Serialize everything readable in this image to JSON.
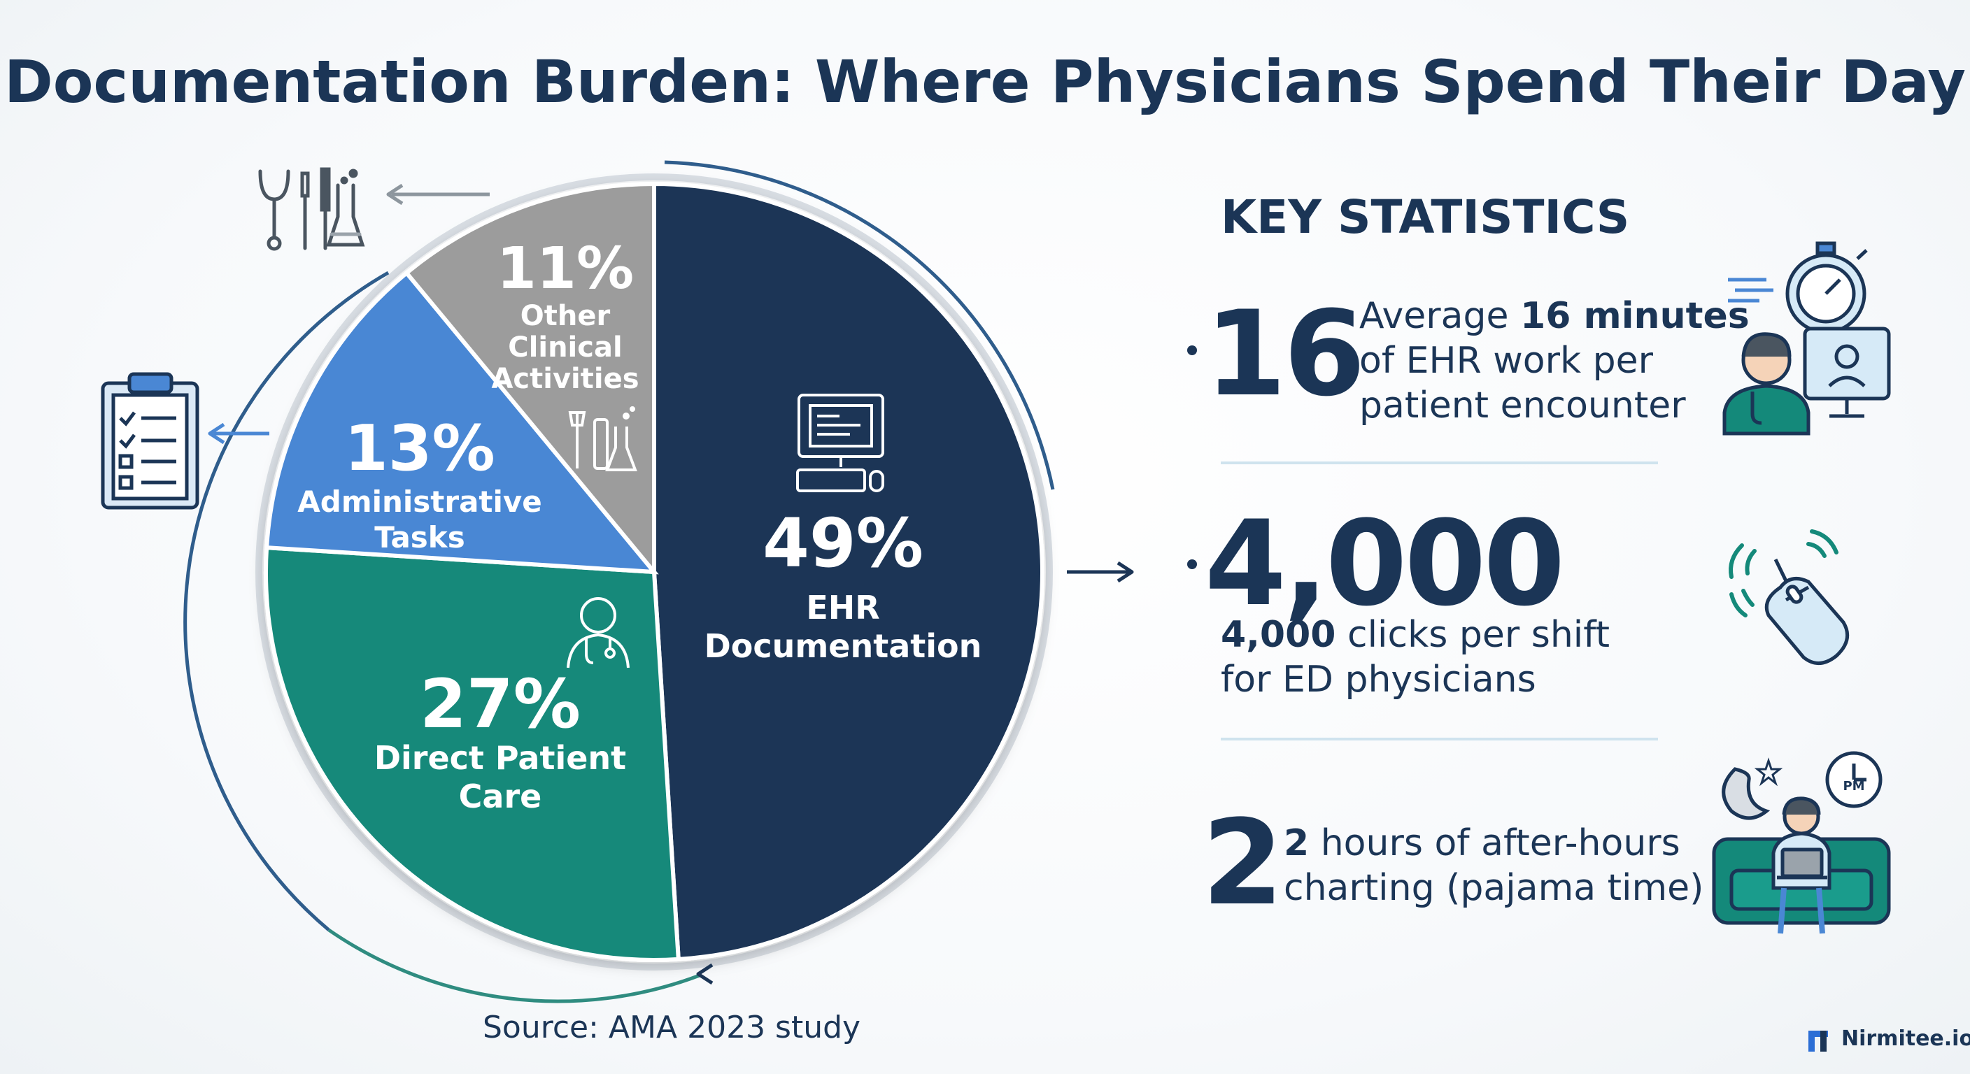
{
  "title": "Documentation Burden: Where Physicians Spend Their Day",
  "chart_data": {
    "type": "pie",
    "title": "Documentation Burden: Where Physicians Spend Their Day",
    "unit": "%",
    "slices": [
      {
        "label": "EHR Documentation",
        "value": 49,
        "display": "49%",
        "color": "#1b3556"
      },
      {
        "label": "Direct Patient Care",
        "value": 27,
        "display": "27%",
        "color": "#14897a"
      },
      {
        "label": "Administrative Tasks",
        "value": 13,
        "display": "13%",
        "color": "#4a87d4"
      },
      {
        "label": "Other Clinical Activities",
        "value": 11,
        "display": "11%",
        "color": "#9c9c9c"
      }
    ]
  },
  "slice_text": {
    "ehr": {
      "pct": "49%",
      "line1": "EHR",
      "line2": "Documentation"
    },
    "direct": {
      "pct": "27%",
      "line1": "Direct Patient",
      "line2": "Care"
    },
    "admin": {
      "pct": "13%",
      "line1": "Administrative",
      "line2": "Tasks"
    },
    "other": {
      "pct": "11%",
      "line1": "Other",
      "line2": "Clinical",
      "line3": "Activities"
    }
  },
  "key_statistics": {
    "heading": "KEY STATISTICS",
    "stat1": {
      "number": "16",
      "t1a": "Average ",
      "t1b": "16 minutes",
      "t2": "of EHR work per",
      "t3": "patient encounter"
    },
    "stat2": {
      "number": "4,000",
      "t1a": "4,000",
      "t1b": " clicks per shift",
      "t2": "for ED physicians"
    },
    "stat3": {
      "number": "2",
      "t1a": "2",
      "t1b": " hours of after-hours",
      "t2": "charting (pajama time)",
      "pm": "PM"
    }
  },
  "source": "Source: AMA 2023 study",
  "brand": "Nirmitee.io",
  "icons": [
    "clinical-tools-icon",
    "clipboard-checklist-icon",
    "computer-icon",
    "doctor-icon",
    "stopwatch-doctor-monitor-icon",
    "mouse-click-icon",
    "night-laptop-couch-icon",
    "nirmitee-logo-icon"
  ]
}
